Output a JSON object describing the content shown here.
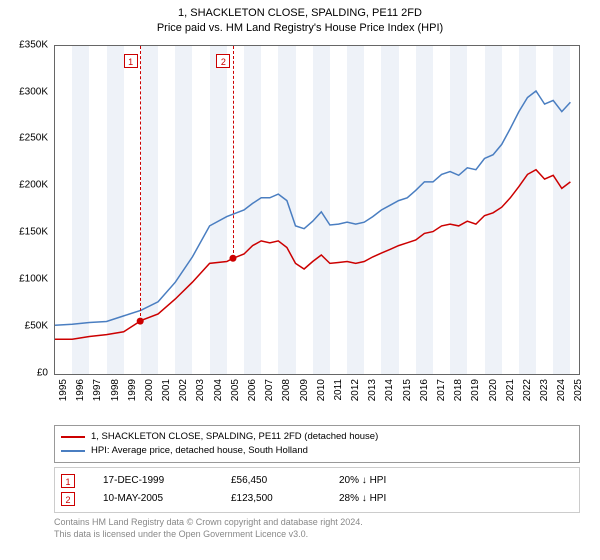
{
  "title": "1, SHACKLETON CLOSE, SPALDING, PE11 2FD",
  "subtitle": "Price paid vs. HM Land Registry's House Price Index (HPI)",
  "chart": {
    "type": "line",
    "background_color": "#ffffff",
    "grid_color": "#e5e5e5",
    "plot_border_color": "#666666",
    "x_years": [
      1995,
      1996,
      1997,
      1998,
      1999,
      2000,
      2001,
      2002,
      2003,
      2004,
      2005,
      2006,
      2007,
      2008,
      2009,
      2010,
      2011,
      2012,
      2013,
      2014,
      2015,
      2016,
      2017,
      2018,
      2019,
      2020,
      2021,
      2022,
      2023,
      2024,
      2025
    ],
    "xlim": [
      1995,
      2025.5
    ],
    "ylim": [
      0,
      350000
    ],
    "ytick_step": 50000,
    "ytick_labels": [
      "£0",
      "£50K",
      "£100K",
      "£150K",
      "£200K",
      "£250K",
      "£300K",
      "£350K"
    ],
    "vertical_bands_color": "#eef2f8",
    "series": [
      {
        "name": "1, SHACKLETON CLOSE, SPALDING, PE11 2FD (detached house)",
        "color": "#cc0000",
        "line_width": 1.5,
        "data": [
          [
            1995,
            37000
          ],
          [
            1996,
            37000
          ],
          [
            1997,
            40000
          ],
          [
            1998,
            42000
          ],
          [
            1999,
            45000
          ],
          [
            1999.96,
            56450
          ],
          [
            2000,
            57000
          ],
          [
            2001,
            64000
          ],
          [
            2002,
            80000
          ],
          [
            2003,
            98000
          ],
          [
            2004,
            118000
          ],
          [
            2005,
            120000
          ],
          [
            2005.36,
            123500
          ],
          [
            2006,
            128000
          ],
          [
            2006.5,
            137000
          ],
          [
            2007,
            142000
          ],
          [
            2007.5,
            140000
          ],
          [
            2008,
            142000
          ],
          [
            2008.5,
            135000
          ],
          [
            2009,
            118000
          ],
          [
            2009.5,
            112000
          ],
          [
            2010,
            120000
          ],
          [
            2010.5,
            127000
          ],
          [
            2011,
            118000
          ],
          [
            2011.5,
            119000
          ],
          [
            2012,
            120000
          ],
          [
            2012.5,
            118000
          ],
          [
            2013,
            120000
          ],
          [
            2013.5,
            125000
          ],
          [
            2014,
            129000
          ],
          [
            2014.5,
            133000
          ],
          [
            2015,
            137000
          ],
          [
            2015.5,
            140000
          ],
          [
            2016,
            143000
          ],
          [
            2016.5,
            150000
          ],
          [
            2017,
            152000
          ],
          [
            2017.5,
            158000
          ],
          [
            2018,
            160000
          ],
          [
            2018.5,
            158000
          ],
          [
            2019,
            163000
          ],
          [
            2019.5,
            160000
          ],
          [
            2020,
            169000
          ],
          [
            2020.5,
            172000
          ],
          [
            2021,
            178000
          ],
          [
            2021.5,
            188000
          ],
          [
            2022,
            200000
          ],
          [
            2022.5,
            213000
          ],
          [
            2023,
            218000
          ],
          [
            2023.5,
            208000
          ],
          [
            2024,
            212000
          ],
          [
            2024.5,
            198000
          ],
          [
            2025,
            205000
          ]
        ]
      },
      {
        "name": "HPI: Average price, detached house, South Holland",
        "color": "#4a7ec1",
        "line_width": 1.5,
        "data": [
          [
            1995,
            52000
          ],
          [
            1996,
            53000
          ],
          [
            1997,
            55000
          ],
          [
            1998,
            56000
          ],
          [
            1999,
            62000
          ],
          [
            2000,
            68000
          ],
          [
            2001,
            77000
          ],
          [
            2002,
            98000
          ],
          [
            2003,
            125000
          ],
          [
            2004,
            158000
          ],
          [
            2005,
            168000
          ],
          [
            2006,
            175000
          ],
          [
            2006.5,
            182000
          ],
          [
            2007,
            188000
          ],
          [
            2007.5,
            188000
          ],
          [
            2008,
            192000
          ],
          [
            2008.5,
            185000
          ],
          [
            2009,
            158000
          ],
          [
            2009.5,
            155000
          ],
          [
            2010,
            163000
          ],
          [
            2010.5,
            173000
          ],
          [
            2011,
            159000
          ],
          [
            2011.5,
            160000
          ],
          [
            2012,
            162000
          ],
          [
            2012.5,
            160000
          ],
          [
            2013,
            162000
          ],
          [
            2013.5,
            168000
          ],
          [
            2014,
            175000
          ],
          [
            2014.5,
            180000
          ],
          [
            2015,
            185000
          ],
          [
            2015.5,
            188000
          ],
          [
            2016,
            196000
          ],
          [
            2016.5,
            205000
          ],
          [
            2017,
            205000
          ],
          [
            2017.5,
            213000
          ],
          [
            2018,
            216000
          ],
          [
            2018.5,
            212000
          ],
          [
            2019,
            220000
          ],
          [
            2019.5,
            218000
          ],
          [
            2020,
            230000
          ],
          [
            2020.5,
            234000
          ],
          [
            2021,
            245000
          ],
          [
            2021.5,
            262000
          ],
          [
            2022,
            280000
          ],
          [
            2022.5,
            295000
          ],
          [
            2023,
            302000
          ],
          [
            2023.5,
            288000
          ],
          [
            2024,
            292000
          ],
          [
            2024.5,
            280000
          ],
          [
            2025,
            290000
          ]
        ]
      }
    ],
    "markers": [
      {
        "num": "1",
        "x": 1999.96,
        "y": 56450,
        "label_x": 1999.4
      },
      {
        "num": "2",
        "x": 2005.36,
        "y": 123500,
        "label_x": 2004.8
      }
    ],
    "markers_table": [
      {
        "num": "1",
        "date": "17-DEC-1999",
        "price": "£56,450",
        "delta": "20% ↓ HPI"
      },
      {
        "num": "2",
        "date": "10-MAY-2005",
        "price": "£123,500",
        "delta": "28% ↓ HPI"
      }
    ]
  },
  "legend": {
    "rows": [
      {
        "color": "#cc0000",
        "label": "1, SHACKLETON CLOSE, SPALDING, PE11 2FD (detached house)"
      },
      {
        "color": "#4a7ec1",
        "label": "HPI: Average price, detached house, South Holland"
      }
    ]
  },
  "footer": {
    "line1": "Contains HM Land Registry data © Crown copyright and database right 2024.",
    "line2": "This data is licensed under the Open Government Licence v3.0."
  }
}
